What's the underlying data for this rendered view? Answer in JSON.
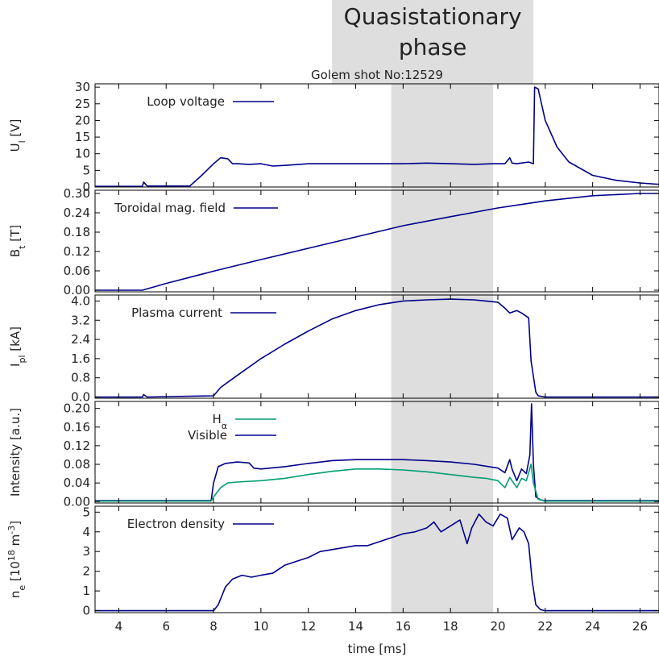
{
  "colors": {
    "shade": "#dedede",
    "navy": "#00008b",
    "teal": "#009e73",
    "frame": "#000000"
  },
  "chart_data": {
    "type": "line",
    "title": "Golem shot No:12529",
    "xlabel": "time [ms]",
    "xlim": [
      3,
      26.8
    ],
    "xticks": [
      4,
      6,
      8,
      10,
      12,
      14,
      16,
      18,
      20,
      22,
      24,
      26
    ],
    "xtick_labels": [
      "4",
      "6",
      "8",
      "10",
      "12",
      "14",
      "16",
      "18",
      "20",
      "22",
      "24",
      "26"
    ],
    "annotation": {
      "text_line1": "Quasistationary",
      "text_line2": "phase"
    },
    "shaded_regions": [
      {
        "name": "title-band",
        "x": [
          13.0,
          21.5
        ]
      },
      {
        "name": "quasistationary-phase",
        "x": [
          15.5,
          19.8
        ]
      }
    ],
    "panels": [
      {
        "key": "loop-voltage",
        "ylabel": "U_l [V]",
        "ylabel_main": "U",
        "ylabel_sub": "l",
        "ylabel_unit": " [V]",
        "ylim": [
          0,
          31
        ],
        "yticks": [
          0,
          5,
          10,
          15,
          20,
          25,
          30
        ],
        "ytick_labels": [
          "0",
          "5",
          "10",
          "15",
          "20",
          "25",
          "30"
        ],
        "legend": [
          {
            "label": "Loop voltage",
            "label_main": "Loop voltage",
            "label_sub": "",
            "color": "#00008b"
          }
        ],
        "series": [
          {
            "name": "Loop voltage",
            "color": "#00008b",
            "x": [
              3.0,
              5.0,
              5.05,
              5.2,
              7.0,
              7.5,
              8.0,
              8.3,
              8.6,
              8.8,
              9.0,
              9.5,
              10.0,
              10.5,
              11.0,
              12.0,
              13.0,
              14.0,
              15.0,
              16.0,
              17.0,
              18.0,
              19.0,
              19.8,
              20.3,
              20.5,
              20.6,
              20.8,
              21.3,
              21.5,
              21.55,
              21.7,
              22.0,
              22.5,
              23.0,
              24.0,
              25.0,
              26.0,
              26.8
            ],
            "y": [
              0.2,
              0.2,
              1.5,
              0.3,
              0.3,
              3.5,
              7.0,
              8.8,
              8.5,
              7.0,
              7.0,
              6.8,
              7.0,
              6.3,
              6.5,
              7.0,
              7.0,
              7.0,
              7.0,
              7.0,
              7.2,
              7.0,
              6.8,
              7.0,
              7.0,
              8.8,
              7.2,
              7.0,
              7.5,
              7.0,
              30.0,
              29.5,
              20.0,
              12.0,
              7.5,
              3.5,
              2.0,
              1.2,
              0.8
            ]
          }
        ]
      },
      {
        "key": "toroidal-field",
        "ylabel": "B_t [T]",
        "ylabel_main": "B",
        "ylabel_sub": "t",
        "ylabel_unit": " [T]",
        "ylim": [
          -0.005,
          0.31
        ],
        "yticks": [
          0.0,
          0.06,
          0.12,
          0.18,
          0.24,
          0.3
        ],
        "ytick_labels": [
          "0.00",
          "0.06",
          "0.12",
          "0.18",
          "0.24",
          "0.30"
        ],
        "legend": [
          {
            "label": "Toroidal mag. field",
            "label_main": "Toroidal mag. field",
            "label_sub": "",
            "color": "#00008b"
          }
        ],
        "series": [
          {
            "name": "Toroidal mag. field",
            "color": "#00008b",
            "x": [
              3.0,
              5.0,
              6.0,
              8.0,
              10.0,
              12.0,
              14.0,
              16.0,
              18.0,
              20.0,
              22.0,
              24.0,
              26.0,
              26.8
            ],
            "y": [
              0.0,
              0.0,
              0.021,
              0.059,
              0.095,
              0.13,
              0.165,
              0.2,
              0.228,
              0.255,
              0.277,
              0.293,
              0.3,
              0.3
            ]
          }
        ]
      },
      {
        "key": "plasma-current",
        "ylabel": "I_pl [kA]",
        "ylabel_main": "I",
        "ylabel_sub": "pl",
        "ylabel_unit": " [kA]",
        "ylim": [
          -0.05,
          4.25
        ],
        "yticks": [
          0.0,
          0.8,
          1.6,
          2.4,
          3.2,
          4.0
        ],
        "ytick_labels": [
          "0.0",
          "0.8",
          "1.6",
          "2.4",
          "3.2",
          "4.0"
        ],
        "legend": [
          {
            "label": "Plasma current",
            "label_main": "Plasma current",
            "label_sub": "",
            "color": "#00008b"
          }
        ],
        "series": [
          {
            "name": "Plasma current",
            "color": "#00008b",
            "x": [
              3.0,
              5.0,
              5.05,
              5.2,
              8.0,
              8.3,
              9.0,
              10.0,
              11.0,
              12.0,
              13.0,
              14.0,
              15.0,
              16.0,
              17.0,
              18.0,
              19.0,
              19.5,
              20.0,
              20.3,
              20.5,
              20.8,
              21.0,
              21.3,
              21.4,
              21.6,
              21.7,
              22.0,
              23.0,
              24.0,
              26.8
            ],
            "y": [
              0.0,
              0.0,
              0.1,
              0.0,
              0.05,
              0.4,
              0.9,
              1.6,
              2.2,
              2.75,
              3.25,
              3.6,
              3.85,
              4.0,
              4.05,
              4.08,
              4.05,
              4.0,
              3.95,
              3.7,
              3.5,
              3.6,
              3.5,
              3.3,
              1.5,
              0.2,
              0.05,
              0.0,
              0.0,
              0.0,
              0.0
            ]
          }
        ]
      },
      {
        "key": "intensity",
        "ylabel": "Intensity [a.u.]",
        "ylabel_main": "Intensity",
        "ylabel_sub": "",
        "ylabel_unit": " [a.u.]",
        "ylim": [
          -0.003,
          0.215
        ],
        "yticks": [
          0.0,
          0.04,
          0.08,
          0.12,
          0.16,
          0.2
        ],
        "ytick_labels": [
          "0.00",
          "0.04",
          "0.08",
          "0.12",
          "0.16",
          "0.20"
        ],
        "legend": [
          {
            "label": "H_α",
            "label_main": "H",
            "label_sub": "α",
            "color": "#009e73"
          },
          {
            "label": "Visible",
            "label_main": "Visible",
            "label_sub": "",
            "color": "#00008b"
          }
        ],
        "series": [
          {
            "name": "Visible",
            "color": "#00008b",
            "x": [
              3.0,
              7.9,
              8.0,
              8.2,
              8.5,
              9.0,
              9.5,
              9.7,
              10.0,
              11.0,
              12.0,
              13.0,
              14.0,
              15.0,
              16.0,
              17.0,
              18.0,
              19.0,
              20.0,
              20.3,
              20.5,
              20.6,
              20.8,
              21.0,
              21.2,
              21.35,
              21.42,
              21.5,
              21.6,
              21.8,
              22.0,
              26.8
            ],
            "y": [
              0.002,
              0.002,
              0.04,
              0.075,
              0.082,
              0.085,
              0.083,
              0.072,
              0.07,
              0.075,
              0.082,
              0.088,
              0.09,
              0.09,
              0.09,
              0.088,
              0.085,
              0.08,
              0.072,
              0.062,
              0.09,
              0.07,
              0.045,
              0.07,
              0.06,
              0.1,
              0.21,
              0.08,
              0.01,
              0.004,
              0.002,
              0.002
            ]
          },
          {
            "name": "H_α",
            "color": "#009e73",
            "x": [
              3.0,
              7.9,
              8.0,
              8.3,
              8.6,
              9.0,
              10.0,
              11.0,
              12.0,
              13.0,
              14.0,
              15.0,
              16.0,
              17.0,
              18.0,
              19.0,
              19.5,
              20.0,
              20.3,
              20.5,
              20.8,
              21.0,
              21.2,
              21.4,
              21.5,
              21.7,
              22.0,
              26.8
            ],
            "y": [
              0.001,
              0.001,
              0.01,
              0.03,
              0.04,
              0.042,
              0.045,
              0.05,
              0.058,
              0.065,
              0.07,
              0.07,
              0.068,
              0.064,
              0.058,
              0.052,
              0.05,
              0.045,
              0.03,
              0.052,
              0.03,
              0.05,
              0.045,
              0.08,
              0.04,
              0.005,
              0.001,
              0.001
            ]
          }
        ]
      },
      {
        "key": "electron-density",
        "ylabel": "n_e [10^18 m^-3]",
        "ylabel_main": "n",
        "ylabel_sub": "e",
        "ylabel_unit": " [10",
        "ylabel_sup1": "18",
        "ylabel_mid": " m",
        "ylabel_sup2": "-3",
        "ylabel_end": "]",
        "ylim": [
          -0.1,
          5.3
        ],
        "yticks": [
          0,
          1,
          2,
          3,
          4,
          5
        ],
        "ytick_labels": [
          "0",
          "1",
          "2",
          "3",
          "4",
          "5"
        ],
        "legend": [
          {
            "label": "Electron density",
            "label_main": "Electron density",
            "label_sub": "",
            "color": "#00008b"
          }
        ],
        "series": [
          {
            "name": "Electron density",
            "color": "#00008b",
            "x": [
              3.0,
              8.0,
              8.2,
              8.5,
              8.8,
              9.2,
              9.6,
              10.0,
              10.5,
              11.0,
              11.5,
              12.0,
              12.5,
              13.0,
              13.5,
              14.0,
              14.5,
              15.0,
              15.5,
              16.0,
              16.5,
              17.0,
              17.3,
              17.6,
              18.0,
              18.4,
              18.7,
              18.9,
              19.2,
              19.5,
              19.8,
              20.1,
              20.4,
              20.6,
              20.9,
              21.1,
              21.3,
              21.45,
              21.6,
              21.8,
              22.0,
              26.8
            ],
            "y": [
              0.0,
              0.0,
              0.3,
              1.2,
              1.6,
              1.8,
              1.7,
              1.8,
              1.9,
              2.3,
              2.5,
              2.7,
              3.0,
              3.1,
              3.2,
              3.3,
              3.3,
              3.5,
              3.7,
              3.9,
              4.0,
              4.2,
              4.5,
              4.0,
              4.3,
              4.6,
              3.4,
              4.2,
              4.9,
              4.5,
              4.3,
              4.9,
              4.7,
              3.6,
              4.2,
              4.0,
              3.4,
              1.5,
              0.3,
              0.05,
              0.0,
              0.0
            ]
          }
        ]
      }
    ]
  }
}
